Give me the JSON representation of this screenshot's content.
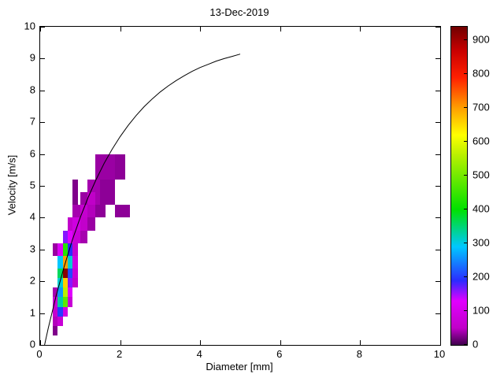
{
  "title": "13-Dec-2019",
  "axes": {
    "xlabel": "Diameter [mm]",
    "ylabel": "Velocity [m/s]",
    "xlim": [
      0,
      10
    ],
    "ylim": [
      0,
      10
    ],
    "xticks": [
      0,
      2,
      4,
      6,
      8,
      10
    ],
    "yticks": [
      0,
      1,
      2,
      3,
      4,
      5,
      6,
      7,
      8,
      9,
      10
    ],
    "box": true,
    "grid": false
  },
  "colorbar": {
    "position": "right",
    "vmin": 0,
    "vmax": 940,
    "ticks": [
      0,
      100,
      200,
      300,
      400,
      500,
      600,
      700,
      800,
      900
    ],
    "stops": [
      {
        "v": 0,
        "c": "#40004d"
      },
      {
        "v": 50,
        "c": "#c000c8"
      },
      {
        "v": 130,
        "c": "#e100ff"
      },
      {
        "v": 190,
        "c": "#2b2bff"
      },
      {
        "v": 290,
        "c": "#00c8ff"
      },
      {
        "v": 400,
        "c": "#00e100"
      },
      {
        "v": 560,
        "c": "#b8f000"
      },
      {
        "v": 620,
        "c": "#ffff00"
      },
      {
        "v": 700,
        "c": "#ff9f00"
      },
      {
        "v": 790,
        "c": "#ff2000"
      },
      {
        "v": 870,
        "c": "#c80000"
      },
      {
        "v": 940,
        "c": "#700000"
      }
    ]
  },
  "chart_data": {
    "type": "heatmap",
    "title": "13-Dec-2019",
    "xlabel": "Diameter [mm]",
    "ylabel": "Velocity [m/s]",
    "xlim": [
      0,
      10
    ],
    "ylim": [
      0,
      10
    ],
    "legend": "colorbar 0-900 (drop counts)",
    "cell_format": [
      "d_min_mm",
      "d_max_mm",
      "v_min_ms",
      "v_max_ms",
      "count"
    ],
    "cells": [
      [
        0.312,
        0.437,
        0.3,
        0.6,
        25
      ],
      [
        0.312,
        0.437,
        0.6,
        0.9,
        45
      ],
      [
        0.437,
        0.562,
        0.6,
        0.9,
        70
      ],
      [
        0.312,
        0.437,
        0.9,
        1.2,
        60
      ],
      [
        0.437,
        0.562,
        0.9,
        1.2,
        200
      ],
      [
        0.562,
        0.687,
        0.9,
        1.2,
        90
      ],
      [
        0.312,
        0.437,
        1.2,
        1.5,
        70
      ],
      [
        0.437,
        0.562,
        1.2,
        1.5,
        330
      ],
      [
        0.562,
        0.687,
        1.2,
        1.5,
        480
      ],
      [
        0.687,
        0.812,
        1.2,
        1.5,
        70
      ],
      [
        0.312,
        0.437,
        1.5,
        1.8,
        40
      ],
      [
        0.437,
        0.562,
        1.5,
        1.8,
        260
      ],
      [
        0.562,
        0.687,
        1.5,
        1.8,
        560
      ],
      [
        0.687,
        0.812,
        1.5,
        1.8,
        130
      ],
      [
        0.437,
        0.562,
        1.8,
        2.1,
        310
      ],
      [
        0.562,
        0.687,
        1.8,
        2.1,
        660
      ],
      [
        0.687,
        0.812,
        1.8,
        2.1,
        160
      ],
      [
        0.812,
        0.937,
        1.8,
        2.1,
        55
      ],
      [
        0.437,
        0.562,
        2.1,
        2.4,
        360
      ],
      [
        0.562,
        0.687,
        2.1,
        2.4,
        920
      ],
      [
        0.687,
        0.812,
        2.1,
        2.4,
        210
      ],
      [
        0.812,
        0.937,
        2.1,
        2.4,
        70
      ],
      [
        0.437,
        0.562,
        2.4,
        2.8,
        290
      ],
      [
        0.562,
        0.687,
        2.4,
        2.8,
        700
      ],
      [
        0.687,
        0.812,
        2.4,
        2.8,
        310
      ],
      [
        0.812,
        0.937,
        2.4,
        2.8,
        85
      ],
      [
        0.312,
        0.437,
        2.8,
        3.2,
        35
      ],
      [
        0.437,
        0.562,
        2.8,
        3.2,
        120
      ],
      [
        0.562,
        0.687,
        2.8,
        3.2,
        430
      ],
      [
        0.687,
        0.812,
        2.8,
        3.2,
        190
      ],
      [
        0.812,
        0.937,
        2.8,
        3.2,
        60
      ],
      [
        0.562,
        0.687,
        3.2,
        3.6,
        160
      ],
      [
        0.687,
        0.812,
        3.2,
        3.6,
        130
      ],
      [
        0.812,
        1.0,
        3.2,
        3.6,
        70
      ],
      [
        1.0,
        1.187,
        3.2,
        3.6,
        40
      ],
      [
        0.687,
        0.812,
        3.6,
        4.0,
        55
      ],
      [
        0.812,
        1.0,
        3.6,
        4.0,
        85
      ],
      [
        1.0,
        1.187,
        3.6,
        4.0,
        55
      ],
      [
        1.187,
        1.375,
        3.6,
        4.0,
        35
      ],
      [
        0.812,
        1.0,
        4.0,
        4.4,
        40
      ],
      [
        1.0,
        1.187,
        4.0,
        4.4,
        60
      ],
      [
        1.187,
        1.375,
        4.0,
        4.4,
        45
      ],
      [
        1.375,
        1.625,
        4.0,
        4.4,
        30
      ],
      [
        1.875,
        2.25,
        4.0,
        4.4,
        30
      ],
      [
        1.0,
        1.187,
        4.4,
        4.8,
        35
      ],
      [
        1.187,
        1.375,
        4.4,
        4.8,
        50
      ],
      [
        1.375,
        1.625,
        4.4,
        4.8,
        40
      ],
      [
        0.812,
        0.937,
        4.4,
        5.2,
        25
      ],
      [
        1.187,
        1.5,
        4.8,
        5.2,
        40
      ],
      [
        1.5,
        1.875,
        4.4,
        5.2,
        30
      ],
      [
        1.375,
        1.875,
        5.2,
        6.0,
        35
      ],
      [
        1.875,
        2.125,
        5.2,
        6.0,
        30
      ]
    ],
    "curve": {
      "label": "terminal-velocity-curve",
      "color": "#000000",
      "points": [
        [
          0.11,
          0.0
        ],
        [
          0.2,
          0.52
        ],
        [
          0.4,
          1.55
        ],
        [
          0.6,
          2.46
        ],
        [
          0.8,
          3.28
        ],
        [
          1.0,
          4.0
        ],
        [
          1.2,
          4.64
        ],
        [
          1.4,
          5.2
        ],
        [
          1.6,
          5.71
        ],
        [
          1.8,
          6.15
        ],
        [
          2.0,
          6.55
        ],
        [
          2.2,
          6.9
        ],
        [
          2.4,
          7.21
        ],
        [
          2.6,
          7.49
        ],
        [
          2.8,
          7.73
        ],
        [
          3.0,
          7.95
        ],
        [
          3.2,
          8.14
        ],
        [
          3.4,
          8.31
        ],
        [
          3.6,
          8.46
        ],
        [
          3.8,
          8.6
        ],
        [
          4.0,
          8.72
        ],
        [
          4.2,
          8.82
        ],
        [
          4.4,
          8.92
        ],
        [
          4.6,
          9.0
        ],
        [
          4.8,
          9.07
        ],
        [
          5.0,
          9.14
        ]
      ]
    }
  }
}
